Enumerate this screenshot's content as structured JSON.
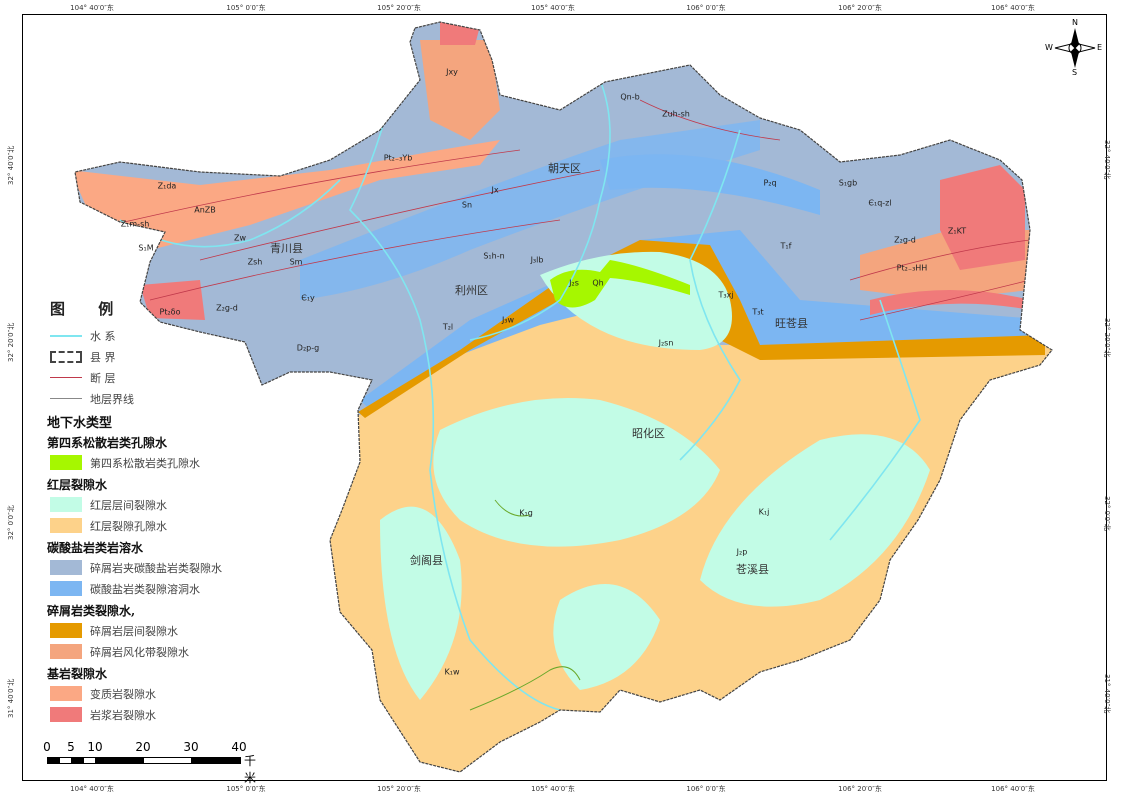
{
  "graticule": {
    "top": [
      "104° 40′0″东",
      "105° 0′0″东",
      "105° 20′0″东",
      "105° 40′0″东",
      "106° 0′0″东",
      "106° 20′0″东",
      "106° 40′0″东"
    ],
    "left": [
      "32° 40′0″北",
      "32° 20′0″北",
      "32° 0′0″北",
      "31° 40′0″北"
    ]
  },
  "places": [
    "青川县",
    "朝天区",
    "利州区",
    "旺苍县",
    "昭化区",
    "剑阁县",
    "苍溪县"
  ],
  "compass": {
    "n": "N",
    "s": "S",
    "e": "E",
    "w": "W"
  },
  "legend": {
    "title": "图  例",
    "lines": [
      {
        "label": "水  系",
        "color": "#7fe6f0"
      },
      {
        "label": "县  界",
        "color": "#444444"
      },
      {
        "label": "断  层",
        "color": "#c0394b"
      },
      {
        "label": "地层界线",
        "color": "#888888"
      }
    ],
    "type_title": "地下水类型",
    "groups": [
      {
        "title": "第四系松散岩类孔隙水",
        "items": [
          {
            "label": "第四系松散岩类孔隙水",
            "color": "#a6f700"
          }
        ]
      },
      {
        "title": "红层裂隙水",
        "items": [
          {
            "label": "红层层间裂隙水",
            "color": "#c2fce6"
          },
          {
            "label": "红层裂隙孔隙水",
            "color": "#fdd28a"
          }
        ]
      },
      {
        "title": "碳酸盐岩类岩溶水",
        "items": [
          {
            "label": "碎屑岩夹碳酸盐岩类裂隙水",
            "color": "#a3b9d6"
          },
          {
            "label": "碳酸盐岩类裂隙溶洞水",
            "color": "#7cb6f2"
          }
        ]
      },
      {
        "title": "碎屑岩类裂隙水,",
        "items": [
          {
            "label": "碎屑岩层间裂隙水",
            "color": "#e59a00"
          },
          {
            "label": "碎屑岩风化带裂隙水",
            "color": "#f4a57e"
          }
        ]
      },
      {
        "title": "基岩裂隙水",
        "items": [
          {
            "label": "变质岩裂隙水",
            "color": "#fba884"
          },
          {
            "label": "岩浆岩裂隙水",
            "color": "#f07a7a"
          }
        ]
      }
    ]
  },
  "scale": {
    "ticks": [
      "0",
      "5",
      "10",
      "20",
      "30",
      "40"
    ],
    "unit": "千米"
  },
  "strata_labels": [
    "Jxy",
    "Pt₂₋₃Yb",
    "AnZB",
    "Z₁da",
    "Z₁m-sh",
    "S₁M",
    "Zsh",
    "Zw",
    "Z₂g-d",
    "Pt₂δo",
    "Є₁y",
    "D₂p-g",
    "Sm",
    "Sn",
    "S₁h-n",
    "Jx",
    "Qh",
    "J₃w",
    "J₃lb",
    "K₁w",
    "K₁j",
    "K₁g",
    "J₂p",
    "J₂s",
    "J₂sn",
    "T₃xj",
    "T₁f",
    "T₂l",
    "P₂q",
    "S₁gb",
    "Є₁q-zl",
    "Z₂g-d",
    "Z₁KT",
    "Pt₂₋₃HH",
    "Qn-b",
    "Zuh-sh",
    "T₃t"
  ]
}
